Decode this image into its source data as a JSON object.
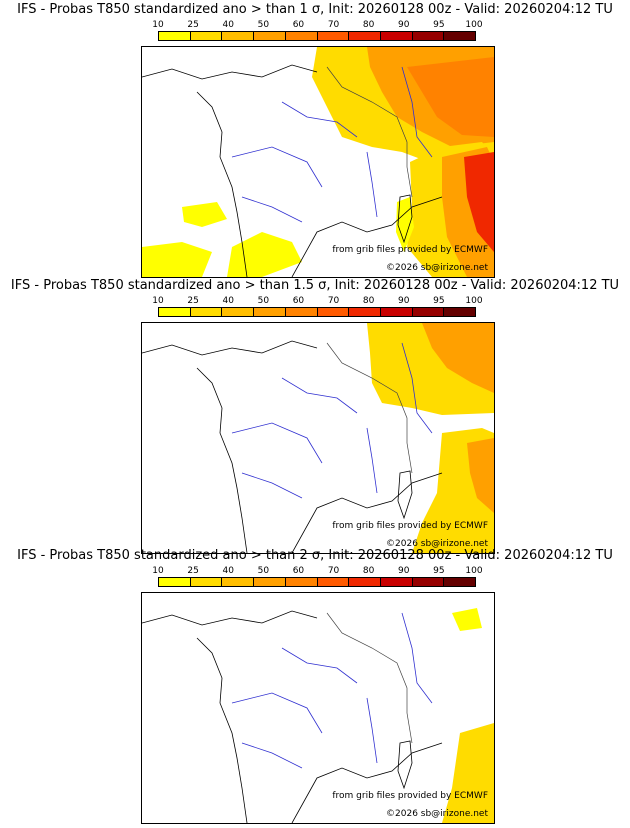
{
  "legend": {
    "ticks": [
      "10",
      "25",
      "40",
      "50",
      "60",
      "70",
      "80",
      "90",
      "95",
      "100"
    ],
    "colors": [
      "#ffff00",
      "#ffdc00",
      "#ffbe00",
      "#ffa000",
      "#ff8200",
      "#ff5a00",
      "#f02800",
      "#c80000",
      "#960000",
      "#640000"
    ]
  },
  "panels": [
    {
      "title": "IFS - Probas T850  standardized ano > than 1 σ, Init: 20260128 00z - Valid: 20260204:12 TU"
    },
    {
      "title": "IFS - Probas T850  standardized ano > than 1.5 σ, Init: 20260128 00z - Valid: 20260204:12 TU"
    },
    {
      "title": "IFS - Probas T850  standardized ano > than 2 σ, Init: 20260128 00z - Valid: 20260204:12 TU"
    }
  ],
  "credits": {
    "source": "from grib files provided by ECMWF",
    "copyright": "©2026 sb@irizone.net"
  }
}
